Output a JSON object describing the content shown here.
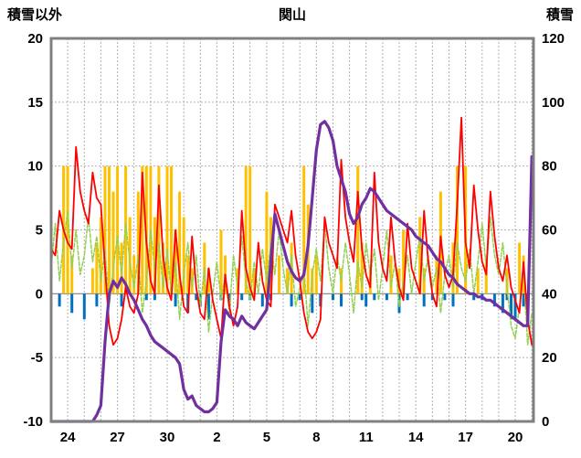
{
  "header": {
    "left_axis_title": "積雪以外",
    "chart_title": "関山",
    "right_axis_title": "積雪"
  },
  "colors": {
    "frame": "#808080",
    "grid": "#b0b0b0",
    "zero_line": "#808080",
    "text": "#000000",
    "background": "#ffffff",
    "red": "#ff0000",
    "green": "#92d050",
    "orange": "#ffc000",
    "blue": "#0070c0",
    "purple": "#7030a0"
  },
  "chart_data": {
    "type": "line",
    "title": "関山",
    "left_axis": {
      "label": "積雪以外",
      "min": -10,
      "max": 20,
      "ticks": [
        20,
        15,
        10,
        5,
        0,
        -5,
        -10
      ]
    },
    "right_axis": {
      "label": "積雪",
      "min": 0,
      "max": 120,
      "ticks": [
        120,
        100,
        80,
        60,
        40,
        20,
        0
      ]
    },
    "x_axis": {
      "day_start": 23,
      "day_end": 52.1,
      "tick_positions": [
        24,
        27,
        30,
        33,
        36,
        39,
        42,
        45,
        48,
        51
      ],
      "tick_labels": [
        "24",
        "27",
        "30",
        "2",
        "5",
        "8",
        "11",
        "14",
        "17",
        "20"
      ],
      "grid": "daily-dashed"
    },
    "t_start": 23,
    "t_step": 0.25,
    "series": [
      {
        "name": "orange-bars",
        "type": "bar",
        "axis": "left",
        "color": "#ffc000",
        "values": [
          0,
          0,
          0,
          10,
          10,
          3,
          0,
          0,
          0,
          0,
          2,
          4,
          6,
          10,
          10,
          8,
          10,
          4,
          10,
          6,
          3,
          8,
          10,
          10,
          10,
          6,
          10,
          4,
          10,
          10,
          5,
          8,
          6,
          3,
          2,
          0,
          0,
          4,
          2,
          0,
          0,
          5,
          3,
          0,
          0,
          2,
          0,
          10,
          10,
          2,
          0,
          0,
          8,
          6,
          0,
          3,
          0,
          2,
          4,
          0,
          0,
          10,
          7,
          2,
          3,
          0,
          0,
          0,
          0,
          0,
          2,
          0,
          0,
          0,
          10,
          4,
          0,
          2,
          0,
          0,
          0,
          0,
          3,
          0,
          2,
          5,
          0,
          0,
          0,
          6,
          2,
          0,
          0,
          3,
          8,
          0,
          0,
          4,
          10,
          0,
          10,
          0,
          0,
          2,
          0,
          3,
          0,
          0,
          0,
          0,
          2,
          0,
          0,
          4,
          3,
          0,
          0
        ]
      },
      {
        "name": "blue-bars",
        "type": "bar",
        "axis": "left",
        "color": "#0070c0",
        "values": [
          0,
          0,
          -1,
          0,
          0,
          -1.5,
          0,
          0,
          -2,
          0,
          0,
          -1,
          0,
          0,
          -0.5,
          0,
          0,
          -1,
          0,
          0,
          0,
          0,
          0,
          -0.5,
          0,
          -0.5,
          0,
          0,
          0,
          0,
          -1,
          0,
          0,
          -1.5,
          0,
          -0.5,
          -1,
          0,
          -2,
          0,
          0,
          -0.5,
          0,
          -1,
          0,
          0,
          -0.5,
          0,
          -0.5,
          0,
          0,
          -1,
          0,
          -0.5,
          0,
          0,
          0,
          0,
          -1,
          0,
          -0.5,
          0,
          0,
          -1.5,
          0,
          -1,
          0,
          0,
          -0.5,
          0,
          -1,
          0,
          0,
          0,
          0,
          -0.5,
          -1,
          0,
          -0.5,
          0,
          0,
          -0.5,
          0,
          0,
          -1.5,
          0,
          -0.5,
          0,
          0,
          0,
          -1,
          0,
          -0.5,
          0,
          0,
          -0.5,
          0,
          -1,
          0,
          0,
          0,
          0,
          -0.5,
          0,
          -0.5,
          0,
          0,
          -1,
          0,
          -1.5,
          -0.5,
          -2,
          -2,
          0,
          -1,
          -2.2,
          0
        ]
      },
      {
        "name": "green-line",
        "type": "line",
        "axis": "left",
        "color": "#92d050",
        "width": 1.5,
        "dash": "4 2",
        "values": [
          2,
          5.5,
          1,
          4,
          6.5,
          2,
          5,
          1.5,
          3,
          6,
          2.5,
          4.5,
          1,
          3.5,
          -1,
          2,
          4.5,
          1.5,
          5.5,
          2.5,
          0.5,
          3,
          -1.5,
          1,
          5,
          2,
          4,
          0.5,
          3.5,
          0,
          2.5,
          -2,
          1.5,
          4,
          0.5,
          3,
          -1,
          2,
          -3,
          0,
          2.5,
          -0.5,
          1.5,
          -1.5,
          3,
          0.5,
          4.5,
          1,
          -0.5,
          2.5,
          0,
          3.5,
          1,
          4,
          1.5,
          5,
          2,
          0,
          3,
          -1,
          0.5,
          2,
          -2.5,
          1.5,
          3.5,
          1,
          5.5,
          2,
          0,
          3,
          1,
          4,
          1.5,
          -1.5,
          2.5,
          0.5,
          4,
          1.5,
          3.5,
          -0.5,
          2,
          5,
          0.5,
          2.5,
          -1,
          1,
          3,
          0,
          2.5,
          4.5,
          1,
          3,
          0.5,
          2,
          -1.5,
          1.5,
          3,
          0.5,
          4,
          2,
          1,
          3.5,
          0,
          2.5,
          5.5,
          2,
          6,
          3,
          1.5,
          4,
          0.5,
          -2.5,
          -3.5,
          -1,
          2,
          -4,
          -1.5
        ]
      },
      {
        "name": "red-line",
        "type": "line",
        "axis": "left",
        "color": "#ff0000",
        "width": 1.8,
        "values": [
          3.5,
          3,
          6.5,
          5,
          4,
          3.5,
          11.5,
          8,
          6.5,
          5.5,
          9.5,
          7.5,
          7,
          2,
          -2.5,
          -4,
          -3.5,
          -2,
          0.5,
          -1,
          -1.5,
          0,
          9.5,
          4,
          1,
          0,
          8.5,
          3,
          0.5,
          -0.5,
          5,
          1.5,
          -1,
          -1.5,
          4.5,
          0.5,
          -1.5,
          -2,
          2,
          -0.5,
          -2,
          -3.5,
          1.5,
          -1,
          -2.5,
          -1,
          6.5,
          2,
          0.5,
          -0.5,
          4,
          1,
          -0.5,
          -1,
          7,
          6,
          5,
          4,
          6.5,
          3,
          1,
          -1.5,
          -3,
          -3.5,
          -3,
          -2,
          6,
          4,
          3,
          2,
          10.5,
          6,
          4,
          2.5,
          8,
          3.5,
          1.5,
          0.5,
          9.5,
          4,
          2,
          1,
          6,
          2.5,
          0.5,
          -0.5,
          5.5,
          2,
          1,
          0,
          6.5,
          2.5,
          0,
          -1,
          4.5,
          1.5,
          0.5,
          1.5,
          7,
          13.8,
          4,
          2,
          8.5,
          5,
          2.5,
          1.5,
          8,
          4.5,
          2,
          1,
          3,
          0.5,
          -0.5,
          -1.5,
          2.5,
          -2,
          -4
        ]
      },
      {
        "name": "purple-line",
        "type": "line",
        "axis": "right",
        "color": "#7030a0",
        "width": 3.2,
        "values": [
          0,
          0,
          0,
          0,
          0,
          0,
          0,
          0,
          0,
          0,
          0,
          2,
          5,
          25,
          40,
          44,
          42,
          45,
          43,
          40,
          38,
          35,
          32,
          30,
          27,
          25,
          24,
          23,
          22,
          21,
          20,
          18,
          10,
          7,
          8,
          5,
          4,
          3,
          3,
          4,
          6,
          25,
          35,
          33,
          32,
          30,
          33,
          31,
          30,
          29,
          31,
          33,
          35,
          50,
          65,
          60,
          55,
          50,
          47,
          45,
          44,
          46,
          55,
          70,
          85,
          93,
          94,
          92,
          88,
          80,
          76,
          72,
          65,
          62,
          64,
          68,
          70,
          73,
          72,
          70,
          68,
          66,
          65,
          64,
          63,
          62,
          61,
          60,
          58,
          57,
          56,
          55,
          53,
          51,
          50,
          48,
          46,
          45,
          43,
          42,
          41,
          40,
          40,
          39,
          39,
          38,
          38,
          37,
          36,
          35,
          34,
          33,
          32,
          31,
          30,
          30,
          83
        ]
      }
    ]
  }
}
